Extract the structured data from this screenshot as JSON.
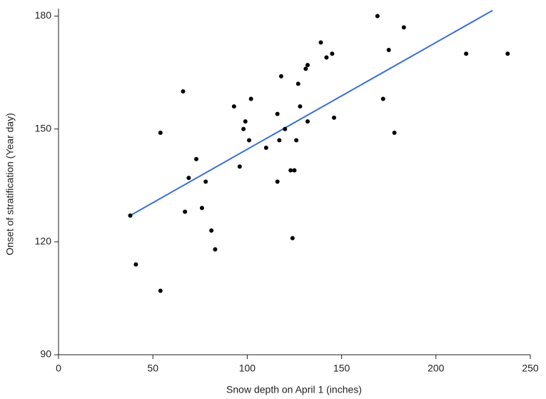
{
  "chart_data": {
    "type": "scatter",
    "x_label": "Snow depth on April 1 (inches)",
    "y_label": "Onset of stratification (Year day)",
    "xlim": [
      0,
      250
    ],
    "xticks": [
      0,
      50,
      100,
      150,
      200,
      250
    ],
    "ylim": [
      90,
      182
    ],
    "yticks": [
      90,
      120,
      150,
      180
    ],
    "color": "#000000",
    "x": [
      38,
      41,
      54,
      54,
      66,
      69,
      73,
      67,
      76,
      78,
      81,
      83,
      93,
      96,
      98,
      99,
      101,
      102,
      110,
      116,
      116,
      117,
      118,
      120,
      123,
      125,
      124,
      126,
      127,
      128,
      131,
      132,
      132,
      139,
      142,
      145,
      146,
      169,
      172,
      175,
      178,
      183,
      216,
      238
    ],
    "y": [
      127,
      114,
      149,
      107,
      160,
      137,
      142,
      128,
      129,
      136,
      123,
      118,
      156,
      140,
      150,
      152,
      147,
      158,
      145,
      154,
      136,
      147,
      164,
      150,
      139,
      139,
      121,
      147,
      162,
      156,
      166,
      167,
      152,
      173,
      169,
      170,
      153,
      180,
      158,
      171,
      149,
      177,
      170,
      170
    ],
    "trend_line": {
      "color": "#3a6fd8",
      "x": [
        38,
        230
      ],
      "y": [
        127,
        181.5
      ]
    }
  }
}
